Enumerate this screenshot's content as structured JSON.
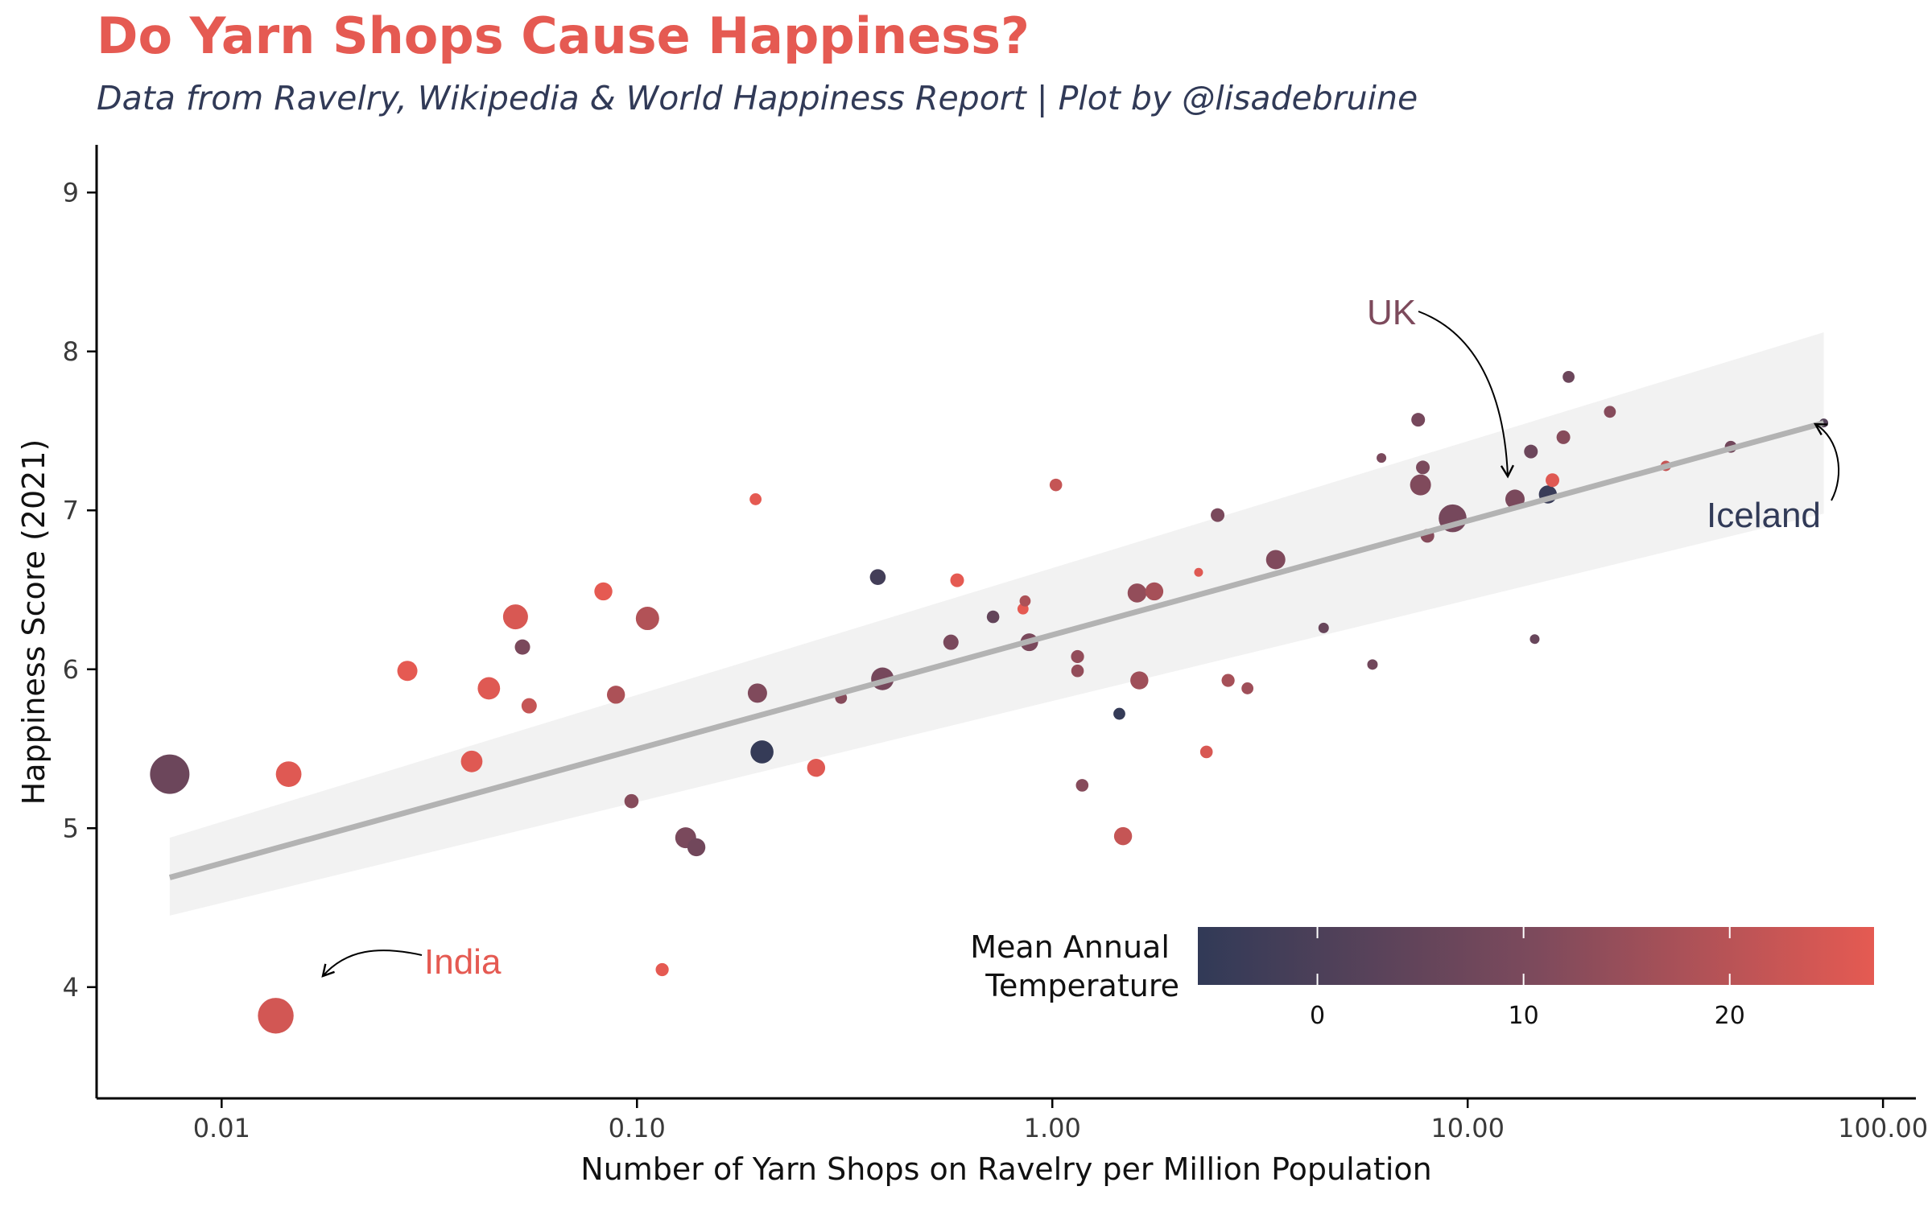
{
  "colors": {
    "title": "#e55a52",
    "subtitle": "#313a57",
    "cold": "#313a57",
    "warm": "#e55a52",
    "trend_line": "#b3b3b3",
    "ribbon": "#f2f2f2"
  },
  "chart_data": {
    "type": "scatter",
    "title": "Do Yarn Shops Cause Happiness?",
    "subtitle": "Data from Ravelry, Wikipedia & World Happiness Report | Plot by @lisadebruine",
    "xlabel": "Number of Yarn Shops on Ravelry per Million Population",
    "ylabel": "Happiness Score (2021)",
    "x_scale": "log10",
    "xlim": [
      0.005,
      120
    ],
    "ylim": [
      3.3,
      9.3
    ],
    "x_ticks": [
      0.01,
      0.1,
      1,
      10,
      100
    ],
    "x_tick_labels": [
      "0.01",
      "0.10",
      "1.00",
      "10.00",
      "100.00"
    ],
    "y_ticks": [
      4,
      5,
      6,
      7,
      8,
      9
    ],
    "y_tick_labels": [
      "4",
      "5",
      "6",
      "7",
      "8",
      "9"
    ],
    "grid": false,
    "trend": {
      "x": [
        0.0075,
        72
      ],
      "y": [
        4.69,
        7.55
      ],
      "ribbon_lower": [
        4.45,
        6.98
      ],
      "ribbon_upper": [
        4.94,
        8.12
      ]
    },
    "legend": {
      "title": "Mean Annual Temperature",
      "placement": "bottom-right",
      "range": [
        -5.8,
        27
      ],
      "ticks": [
        0,
        10,
        20
      ],
      "tick_labels": [
        "0",
        "10",
        "20"
      ]
    },
    "annotations": [
      {
        "label": "UK",
        "x": 13.0,
        "y": 7.07,
        "color": "#7d4a5c"
      },
      {
        "label": "Iceland",
        "x": 72,
        "y": 7.55,
        "color": "#313a57"
      },
      {
        "label": "India",
        "x": 0.0135,
        "y": 3.82,
        "color": "#e55a52"
      }
    ],
    "points": [
      {
        "x": 0.0075,
        "y": 5.34,
        "size": 10,
        "temp": 7
      },
      {
        "x": 0.0135,
        "y": 3.82,
        "size": 8.2,
        "temp": 24
      },
      {
        "x": 0.0145,
        "y": 5.34,
        "size": 4.2,
        "temp": 26
      },
      {
        "x": 0.028,
        "y": 5.99,
        "size": 2.6,
        "temp": 27
      },
      {
        "x": 0.04,
        "y": 5.42,
        "size": 3.0,
        "temp": 26
      },
      {
        "x": 0.044,
        "y": 5.88,
        "size": 3.2,
        "temp": 26
      },
      {
        "x": 0.051,
        "y": 6.33,
        "size": 4.0,
        "temp": 25
      },
      {
        "x": 0.053,
        "y": 6.14,
        "size": 1.5,
        "temp": 10
      },
      {
        "x": 0.055,
        "y": 5.77,
        "size": 1.5,
        "temp": 22
      },
      {
        "x": 0.083,
        "y": 6.49,
        "size": 2.1,
        "temp": 27
      },
      {
        "x": 0.089,
        "y": 5.84,
        "size": 2.1,
        "temp": 18
      },
      {
        "x": 0.097,
        "y": 5.17,
        "size": 1.3,
        "temp": 12
      },
      {
        "x": 0.106,
        "y": 6.32,
        "size": 3.5,
        "temp": 19
      },
      {
        "x": 0.115,
        "y": 4.11,
        "size": 1.1,
        "temp": 27
      },
      {
        "x": 0.131,
        "y": 4.94,
        "size": 2.8,
        "temp": 10
      },
      {
        "x": 0.139,
        "y": 4.88,
        "size": 2.1,
        "temp": 8
      },
      {
        "x": 0.193,
        "y": 7.07,
        "size": 0.9,
        "temp": 27
      },
      {
        "x": 0.195,
        "y": 5.85,
        "size": 2.4,
        "temp": 11
      },
      {
        "x": 0.2,
        "y": 5.48,
        "size": 3.4,
        "temp": -5
      },
      {
        "x": 0.27,
        "y": 5.38,
        "size": 2.1,
        "temp": 26
      },
      {
        "x": 0.31,
        "y": 5.82,
        "size": 0.9,
        "temp": 12
      },
      {
        "x": 0.38,
        "y": 6.58,
        "size": 1.6,
        "temp": -2
      },
      {
        "x": 0.39,
        "y": 5.94,
        "size": 3.3,
        "temp": 9
      },
      {
        "x": 0.59,
        "y": 6.56,
        "size": 1.2,
        "temp": 27
      },
      {
        "x": 0.57,
        "y": 6.17,
        "size": 1.5,
        "temp": 10
      },
      {
        "x": 0.72,
        "y": 6.33,
        "size": 1.0,
        "temp": 5
      },
      {
        "x": 0.85,
        "y": 6.38,
        "size": 0.8,
        "temp": 27
      },
      {
        "x": 0.86,
        "y": 6.43,
        "size": 0.8,
        "temp": 18
      },
      {
        "x": 0.88,
        "y": 6.17,
        "size": 2.0,
        "temp": 10
      },
      {
        "x": 1.02,
        "y": 7.16,
        "size": 1.0,
        "temp": 22
      },
      {
        "x": 1.15,
        "y": 6.08,
        "size": 1.1,
        "temp": 14
      },
      {
        "x": 1.15,
        "y": 5.99,
        "size": 1.0,
        "temp": 14
      },
      {
        "x": 1.18,
        "y": 5.27,
        "size": 1.0,
        "temp": 12
      },
      {
        "x": 1.45,
        "y": 5.72,
        "size": 0.9,
        "temp": -5
      },
      {
        "x": 1.48,
        "y": 4.95,
        "size": 2.1,
        "temp": 22
      },
      {
        "x": 1.6,
        "y": 6.48,
        "size": 2.3,
        "temp": 14
      },
      {
        "x": 1.76,
        "y": 6.49,
        "size": 2.1,
        "temp": 17
      },
      {
        "x": 1.62,
        "y": 5.93,
        "size": 2.1,
        "temp": 16
      },
      {
        "x": 2.25,
        "y": 6.61,
        "size": 0.5,
        "temp": 26
      },
      {
        "x": 2.35,
        "y": 5.48,
        "size": 1.0,
        "temp": 25
      },
      {
        "x": 2.5,
        "y": 6.97,
        "size": 1.2,
        "temp": 10
      },
      {
        "x": 2.65,
        "y": 5.93,
        "size": 1.1,
        "temp": 17
      },
      {
        "x": 2.95,
        "y": 5.88,
        "size": 0.9,
        "temp": 16
      },
      {
        "x": 3.45,
        "y": 6.69,
        "size": 2.4,
        "temp": 11
      },
      {
        "x": 4.5,
        "y": 6.26,
        "size": 0.7,
        "temp": 6
      },
      {
        "x": 5.9,
        "y": 6.03,
        "size": 0.7,
        "temp": 8
      },
      {
        "x": 6.2,
        "y": 7.33,
        "size": 0.6,
        "temp": 10
      },
      {
        "x": 7.6,
        "y": 7.57,
        "size": 1.2,
        "temp": 9
      },
      {
        "x": 7.7,
        "y": 7.16,
        "size": 2.8,
        "temp": 11
      },
      {
        "x": 7.8,
        "y": 7.27,
        "size": 1.2,
        "temp": 10
      },
      {
        "x": 8.0,
        "y": 6.84,
        "size": 1.2,
        "temp": 12
      },
      {
        "x": 9.2,
        "y": 6.95,
        "size": 5.0,
        "temp": 9
      },
      {
        "x": 13.0,
        "y": 7.07,
        "size": 2.4,
        "temp": 10
      },
      {
        "x": 14.2,
        "y": 7.37,
        "size": 1.2,
        "temp": 7
      },
      {
        "x": 14.5,
        "y": 6.19,
        "size": 0.6,
        "temp": 6
      },
      {
        "x": 15.6,
        "y": 7.1,
        "size": 2.1,
        "temp": -4
      },
      {
        "x": 16.0,
        "y": 7.19,
        "size": 1.2,
        "temp": 26
      },
      {
        "x": 17.0,
        "y": 7.46,
        "size": 1.2,
        "temp": 12
      },
      {
        "x": 17.5,
        "y": 7.84,
        "size": 0.9,
        "temp": 7
      },
      {
        "x": 22.0,
        "y": 7.62,
        "size": 0.9,
        "temp": 12
      },
      {
        "x": 30.0,
        "y": 7.28,
        "size": 0.7,
        "temp": 22
      },
      {
        "x": 43.0,
        "y": 7.4,
        "size": 0.9,
        "temp": 8
      },
      {
        "x": 72.0,
        "y": 7.55,
        "size": 0.5,
        "temp": 2
      }
    ]
  }
}
